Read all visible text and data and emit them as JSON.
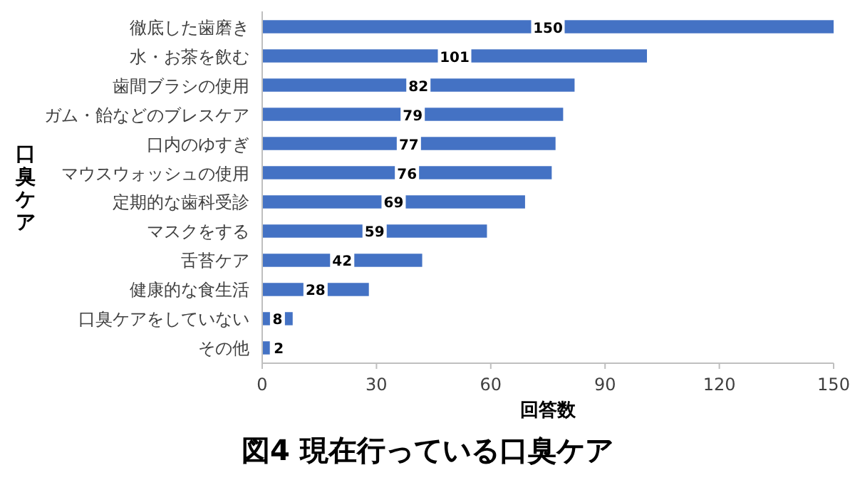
{
  "chart_data": {
    "type": "bar",
    "orientation": "horizontal",
    "title": "図4 現在行っている口臭ケア",
    "xlabel": "回答数",
    "ylabel": "口臭ケア",
    "categories": [
      "徹底した歯磨き",
      "水・お茶を飲む",
      "歯間ブラシの使用",
      "ガム・飴などのブレスケア",
      "口内のゆすぎ",
      "マウスウォッシュの使用",
      "定期的な歯科受診",
      "マスクをする",
      "舌苔ケア",
      "健康的な食生活",
      "口臭ケアをしていない",
      "その他"
    ],
    "values": [
      150,
      101,
      82,
      79,
      77,
      76,
      69,
      59,
      42,
      28,
      8,
      2
    ],
    "color": "#4472c4",
    "xlim": [
      0,
      150
    ],
    "xticks": [
      0,
      30,
      60,
      90,
      120,
      150
    ],
    "data_labels": true,
    "grid": false
  }
}
